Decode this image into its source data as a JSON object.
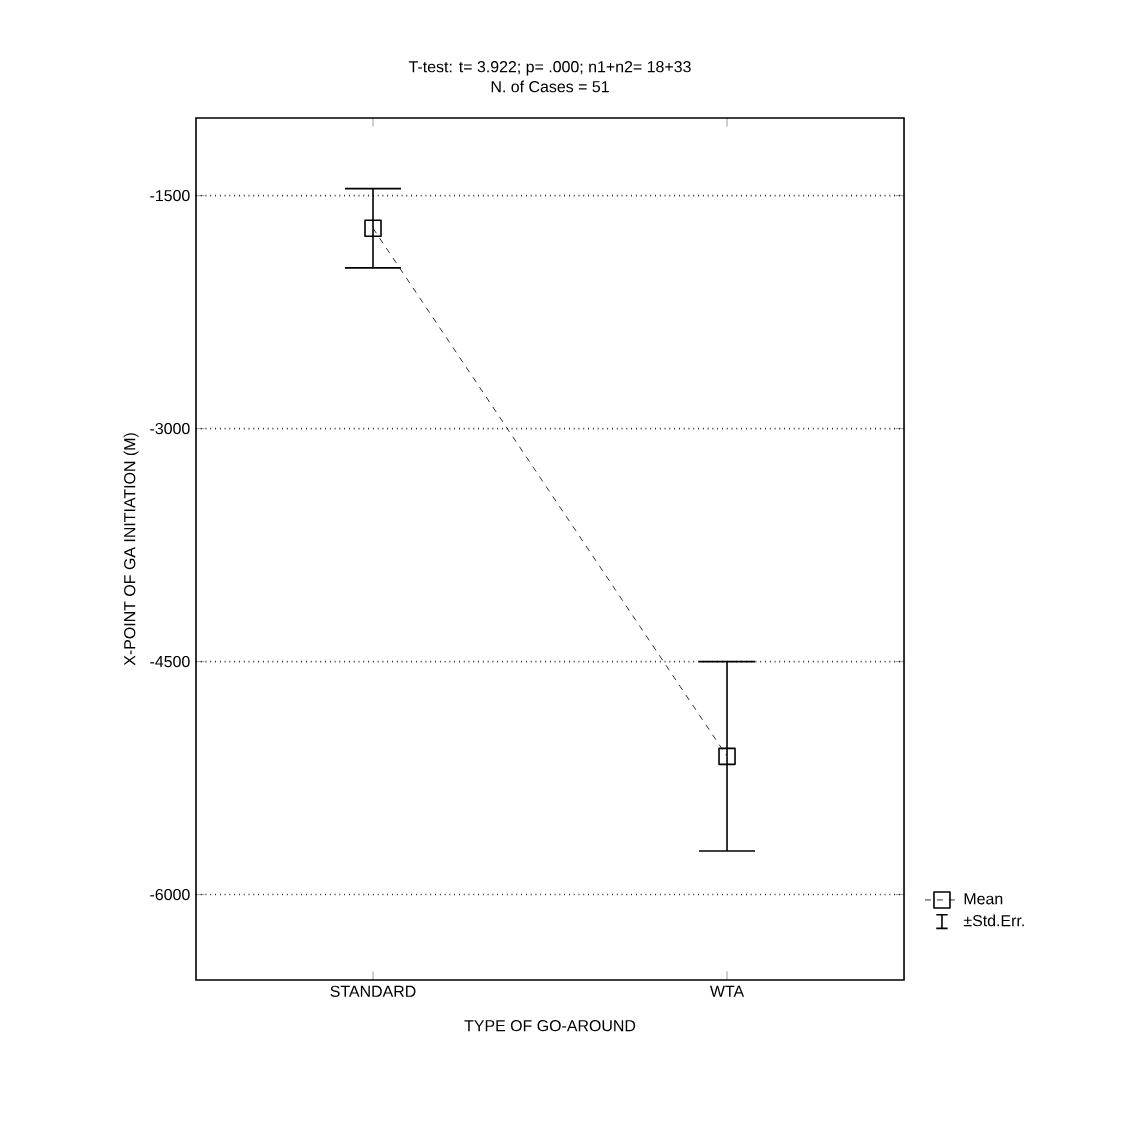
{
  "chart_data": {
    "type": "line",
    "title": "T-test: t= 3.922; p= .000; n1+n2= 18+33",
    "subtitle": "N. of Cases = 51",
    "xlabel": "TYPE OF GO-AROUND",
    "ylabel": "X-POINT OF GA INITIATION  (M)",
    "categories": [
      "STANDARD",
      "WTA"
    ],
    "series": [
      {
        "name": "Mean",
        "color": "#000000",
        "values": [
          -1710,
          -5110
        ],
        "errors": [
          255,
          610
        ]
      }
    ],
    "annotations": [
      "±Std.Err."
    ],
    "ylim": [
      -6550,
      -1000
    ],
    "yticks": [
      -6000,
      -4500,
      -3000,
      -1500
    ],
    "grid": "y",
    "legend": "bottom right",
    "marker": "square",
    "line_style": "dashed"
  }
}
